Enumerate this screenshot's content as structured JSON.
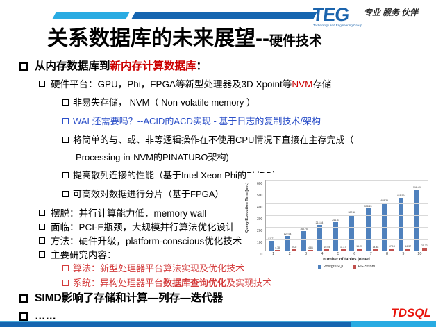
{
  "slide": {
    "title_main": "关系数据库的未来展望--",
    "title_sub": "硬件技术",
    "footer_brand": "TDSQL"
  },
  "logo": {
    "text": "TEG",
    "subtext": "Technology and Engineering Group",
    "tagline": "专业 服务 伙伴"
  },
  "colors": {
    "black": "#000000",
    "red": "#cc0000",
    "softred": "#d43c3c",
    "blue": "#2b4fc8",
    "accent_dark_blue": "#1565b0",
    "accent_light_blue": "#29abe2",
    "brand_red": "#e8150d"
  },
  "bullets": [
    {
      "level": 1,
      "segments": [
        {
          "t": "从内存数据库到"
        },
        {
          "t": "新内存计算数据库",
          "c": "red"
        },
        {
          "t": "："
        }
      ]
    },
    {
      "level": 2,
      "segments": [
        {
          "t": "硬件平台：GPU，Phi，FPGA等新型处理器及3D Xpoint等"
        },
        {
          "t": "NVM",
          "c": "red"
        },
        {
          "t": "存储"
        }
      ]
    },
    {
      "level": 3,
      "segments": [
        {
          "t": "非易失存储， NVM（ Non-volatile memory ）"
        }
      ]
    },
    {
      "level": 3,
      "color": "blue",
      "segments": [
        {
          "t": "WAL还需要吗？--ACID的ACD实现 - 基于日志的复制技术/架构"
        }
      ]
    },
    {
      "level": 3,
      "mb7": true,
      "segments": [
        {
          "t": "将简单的与、或、非等逻辑操作在不使用CPU情况下直接在主存完成（"
        }
      ]
    },
    {
      "level": 3,
      "cont": true,
      "segments": [
        {
          "t": "Processing-in-NVM的PINATUBO架构)"
        }
      ]
    },
    {
      "level": 3,
      "segments": [
        {
          "t": "提高散列连接的性能（基于Intel Xeon Phi的PhiDB）"
        }
      ]
    },
    {
      "level": 3,
      "segments": [
        {
          "t": "可高效对数据进行分片（基于FPGA）"
        }
      ]
    },
    {
      "level": 2,
      "compact": true,
      "segments": [
        {
          "t": "摆脱：并行计算能力低，memory wall"
        }
      ]
    },
    {
      "level": 2,
      "compact": true,
      "segments": [
        {
          "t": "面临：PCI-E瓶颈，大规模并行算法优化设计"
        }
      ]
    },
    {
      "level": 2,
      "compact": true,
      "segments": [
        {
          "t": "方法：硬件升级，platform-conscious优化技术"
        }
      ]
    },
    {
      "level": 2,
      "compact": true,
      "segments": [
        {
          "t": "主要研究内容："
        }
      ]
    },
    {
      "level": 3,
      "color": "softred",
      "compact2": true,
      "segments": [
        {
          "t": "算法：新型处理器平台算法实现及优化技术"
        }
      ]
    },
    {
      "level": 3,
      "color": "softred",
      "compact2": true,
      "segments": [
        {
          "t": "系统：异构处理器平台"
        },
        {
          "t": "数据库查询优化",
          "b": true
        },
        {
          "t": "及实现技术"
        }
      ]
    },
    {
      "level": 1,
      "segments": [
        {
          "t": "SIMD影响了存储和计算—列存—迭代器"
        }
      ]
    },
    {
      "level": 1,
      "segments": [
        {
          "t": "……"
        }
      ]
    }
  ],
  "chart_data": {
    "type": "bar",
    "title": "",
    "xlabel": "number of tables joined",
    "ylabel": "Query Execution Time [sec]",
    "categories": [
      "1",
      "2",
      "3",
      "4",
      "5",
      "6",
      "7",
      "8",
      "9",
      "10"
    ],
    "series": [
      {
        "name": "PostgreSQL",
        "color": "#4f81bd",
        "values": [
          81.71,
          122.94,
          165.75,
          214.84,
          241.51,
          307.18,
          358.2,
          408.39,
          448.59,
          518.49
        ]
      },
      {
        "name": "PG-Strom",
        "color": "#c0504d",
        "values": [
          4.38,
          9.02,
          4.86,
          10.55,
          11.47,
          15.21,
          14.48,
          17.13,
          16.37,
          21.72
        ]
      }
    ],
    "ylim": [
      0,
      600
    ],
    "ytick_step": 100,
    "grid": true,
    "legend_position": "bottom"
  }
}
